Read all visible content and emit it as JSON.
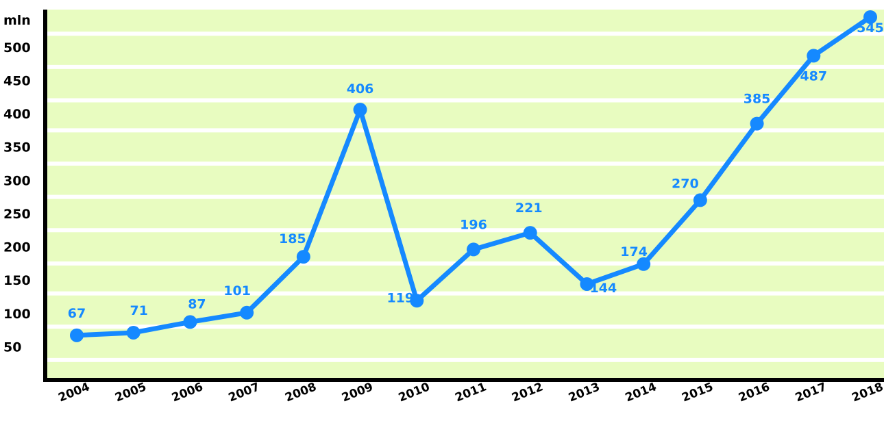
{
  "chart_data": {
    "type": "line",
    "title": "",
    "xlabel": "",
    "ylabel": "mln",
    "categories": [
      "2004",
      "2005",
      "2006",
      "2007",
      "2008",
      "2009",
      "2010",
      "2011",
      "2012",
      "2013",
      "2014",
      "2015",
      "2016",
      "2017",
      "2018"
    ],
    "series": [
      {
        "values": [
          67,
          71,
          87,
          101,
          185,
          406,
          119,
          196,
          221,
          144,
          174,
          270,
          385,
          487,
          545
        ]
      }
    ],
    "data_labels": [
      "67",
      "71",
      "87",
      "101",
      "185",
      "406",
      "119",
      "196",
      "221",
      "144",
      "174",
      "270",
      "385",
      "487",
      "545"
    ],
    "yticks": [
      50,
      100,
      150,
      200,
      250,
      300,
      350,
      400,
      450,
      500
    ],
    "ylim": [
      0,
      545
    ],
    "grid": true,
    "colors": {
      "background": "#e8fcc0",
      "line": "#1589ff",
      "grid": "#ffffff",
      "axis": "#000000"
    }
  }
}
